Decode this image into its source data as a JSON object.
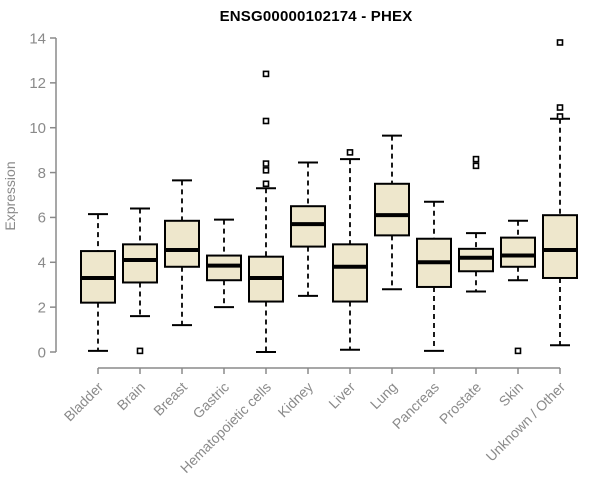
{
  "chart_data": {
    "type": "boxplot",
    "title": "ENSG00000102174 - PHEX",
    "xlabel": "",
    "ylabel": "Expression",
    "ylim": [
      0,
      14
    ],
    "yticks": [
      0,
      2,
      4,
      6,
      8,
      10,
      12,
      14
    ],
    "grid": false,
    "legend": "none",
    "categories": [
      "Bladder",
      "Brain",
      "Breast",
      "Gastric",
      "Hematopoietic cells",
      "Kidney",
      "Liver",
      "Lung",
      "Pancreas",
      "Prostate",
      "Skin",
      "Unknown / Other"
    ],
    "series": [
      {
        "name": "Bladder",
        "whisker_low": 0.05,
        "q1": 2.2,
        "median": 3.3,
        "q3": 4.5,
        "whisker_high": 6.15,
        "outliers": []
      },
      {
        "name": "Brain",
        "whisker_low": 1.6,
        "q1": 3.1,
        "median": 4.1,
        "q3": 4.8,
        "whisker_high": 6.4,
        "outliers": [
          0.05
        ]
      },
      {
        "name": "Breast",
        "whisker_low": 1.2,
        "q1": 3.8,
        "median": 4.55,
        "q3": 5.85,
        "whisker_high": 7.65,
        "outliers": []
      },
      {
        "name": "Gastric",
        "whisker_low": 2.0,
        "q1": 3.2,
        "median": 3.85,
        "q3": 4.3,
        "whisker_high": 5.9,
        "outliers": []
      },
      {
        "name": "Hematopoietic cells",
        "whisker_low": 0.0,
        "q1": 2.25,
        "median": 3.3,
        "q3": 4.25,
        "whisker_high": 7.3,
        "outliers": [
          7.5,
          8.1,
          8.4,
          10.3,
          12.4
        ]
      },
      {
        "name": "Kidney",
        "whisker_low": 2.5,
        "q1": 4.7,
        "median": 5.7,
        "q3": 6.5,
        "whisker_high": 8.45,
        "outliers": []
      },
      {
        "name": "Liver",
        "whisker_low": 0.1,
        "q1": 2.25,
        "median": 3.8,
        "q3": 4.8,
        "whisker_high": 8.6,
        "outliers": [
          8.9
        ]
      },
      {
        "name": "Lung",
        "whisker_low": 2.8,
        "q1": 5.2,
        "median": 6.1,
        "q3": 7.5,
        "whisker_high": 9.65,
        "outliers": []
      },
      {
        "name": "Pancreas",
        "whisker_low": 0.05,
        "q1": 2.9,
        "median": 4.0,
        "q3": 5.05,
        "whisker_high": 6.7,
        "outliers": []
      },
      {
        "name": "Prostate",
        "whisker_low": 2.7,
        "q1": 3.6,
        "median": 4.2,
        "q3": 4.6,
        "whisker_high": 5.3,
        "outliers": [
          8.3,
          8.6
        ]
      },
      {
        "name": "Skin",
        "whisker_low": 3.2,
        "q1": 3.8,
        "median": 4.3,
        "q3": 5.1,
        "whisker_high": 5.85,
        "outliers": [
          0.05
        ]
      },
      {
        "name": "Unknown / Other",
        "whisker_low": 0.3,
        "q1": 3.3,
        "median": 4.55,
        "q3": 6.1,
        "whisker_high": 10.4,
        "outliers": [
          10.5,
          10.9,
          13.8
        ]
      }
    ],
    "colors": {
      "box_fill": "#EEE7CC",
      "box_border": "#000000",
      "median": "#000000",
      "whisker": "#000000",
      "axis_line": "#8a8a8a",
      "tick_text": "#8a8a8a",
      "title_text": "#000000",
      "background": "#ffffff"
    }
  }
}
